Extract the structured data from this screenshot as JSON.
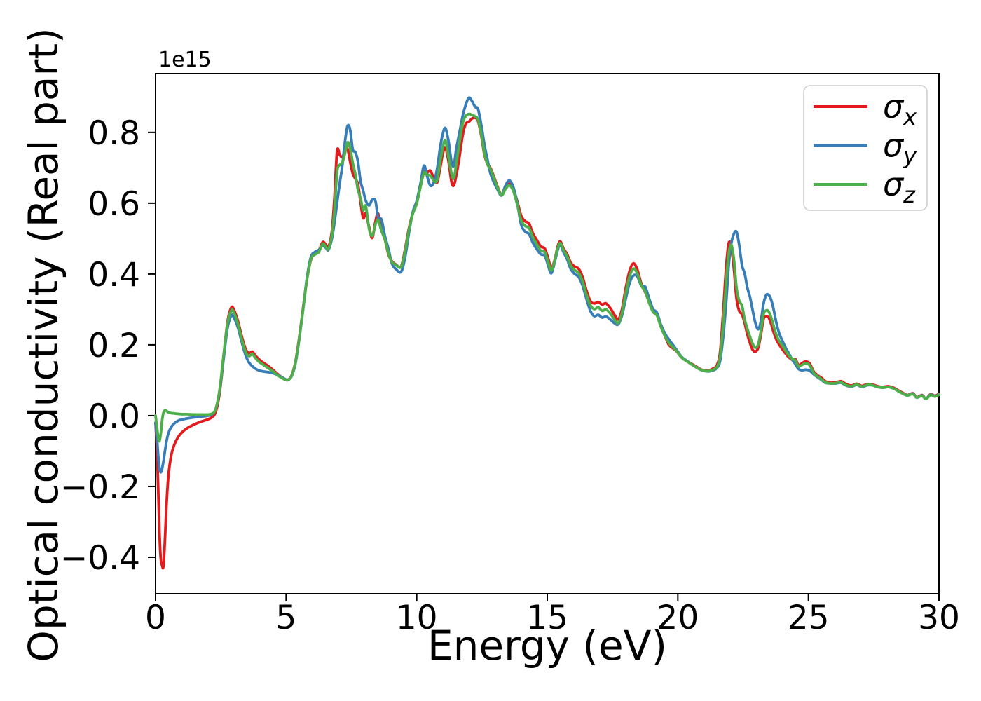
{
  "figure": {
    "background": "#ffffff"
  },
  "axes": {
    "xlabel": "Energy (eV)",
    "ylabel": "Optical conductivity (Real part)",
    "offset_text": "1e15",
    "x_tick_labels": [
      "0",
      "5",
      "10",
      "15",
      "20",
      "25",
      "30"
    ],
    "x_tick_values": [
      0,
      5,
      10,
      15,
      20,
      25,
      30
    ],
    "y_tick_labels": [
      "0.8",
      "0.6",
      "0.4",
      "0.2",
      "0.0",
      "−0.2",
      "−0.4"
    ],
    "y_tick_values": [
      0.8,
      0.6,
      0.4,
      0.2,
      0.0,
      -0.2,
      -0.4
    ],
    "spine_color": "#000000",
    "tick_color": "#000000"
  },
  "legend": {
    "entries": [
      {
        "symbol": "σ",
        "sub": "x",
        "color": "#e41a1c"
      },
      {
        "symbol": "σ",
        "sub": "y",
        "color": "#377eb8"
      },
      {
        "symbol": "σ",
        "sub": "z",
        "color": "#4daf4a"
      }
    ],
    "border_color": "#cccccc",
    "fill_color": "#ffffff"
  },
  "chart_data": {
    "type": "line",
    "title": "",
    "xlabel": "Energy (eV)",
    "ylabel": "Optical conductivity (Real part)",
    "y_scale_factor": "1e15",
    "xlim": [
      0,
      30
    ],
    "ylim": [
      -0.503,
      0.966
    ],
    "grid": false,
    "legend_position": "upper right",
    "columns": [
      "energy_eV",
      "sigma_x",
      "sigma_y",
      "sigma_z"
    ],
    "series": [
      {
        "name": "σ_x",
        "color": "#e41a1c",
        "column": 1
      },
      {
        "name": "σ_y",
        "color": "#377eb8",
        "column": 2
      },
      {
        "name": "σ_z",
        "color": "#4daf4a",
        "column": 3
      }
    ],
    "points": [
      [
        0.0,
        -0.02,
        -0.02,
        0.0
      ],
      [
        0.05,
        -0.09,
        -0.06,
        -0.03
      ],
      [
        0.1,
        -0.2,
        -0.11,
        -0.06
      ],
      [
        0.15,
        -0.33,
        -0.15,
        -0.072
      ],
      [
        0.2,
        -0.405,
        -0.16,
        -0.05
      ],
      [
        0.25,
        -0.423,
        -0.15,
        -0.015
      ],
      [
        0.3,
        -0.425,
        -0.13,
        0.008
      ],
      [
        0.36,
        -0.35,
        -0.1,
        0.015
      ],
      [
        0.42,
        -0.25,
        -0.072,
        0.013
      ],
      [
        0.5,
        -0.165,
        -0.048,
        0.009
      ],
      [
        0.6,
        -0.112,
        -0.032,
        0.007
      ],
      [
        0.72,
        -0.082,
        -0.022,
        0.006
      ],
      [
        0.85,
        -0.062,
        -0.015,
        0.005
      ],
      [
        1.0,
        -0.048,
        -0.011,
        0.004
      ],
      [
        1.2,
        -0.036,
        -0.008,
        0.004
      ],
      [
        1.45,
        -0.026,
        -0.005,
        0.003
      ],
      [
        1.7,
        -0.018,
        -0.003,
        0.003
      ],
      [
        1.95,
        -0.012,
        -0.001,
        0.003
      ],
      [
        2.15,
        -0.005,
        0.003,
        0.005
      ],
      [
        2.3,
        0.01,
        0.018,
        0.018
      ],
      [
        2.45,
        0.062,
        0.068,
        0.072
      ],
      [
        2.6,
        0.16,
        0.158,
        0.168
      ],
      [
        2.75,
        0.262,
        0.245,
        0.258
      ],
      [
        2.9,
        0.305,
        0.283,
        0.297
      ],
      [
        3.0,
        0.299,
        0.277,
        0.291
      ],
      [
        3.15,
        0.268,
        0.25,
        0.26
      ],
      [
        3.3,
        0.224,
        0.208,
        0.216
      ],
      [
        3.45,
        0.188,
        0.17,
        0.18
      ],
      [
        3.58,
        0.176,
        0.15,
        0.168
      ],
      [
        3.7,
        0.181,
        0.14,
        0.175
      ],
      [
        3.82,
        0.17,
        0.133,
        0.163
      ],
      [
        3.95,
        0.16,
        0.128,
        0.153
      ],
      [
        4.1,
        0.151,
        0.125,
        0.145
      ],
      [
        4.3,
        0.141,
        0.123,
        0.135
      ],
      [
        4.5,
        0.129,
        0.12,
        0.125
      ],
      [
        4.7,
        0.116,
        0.114,
        0.113
      ],
      [
        4.9,
        0.105,
        0.106,
        0.104
      ],
      [
        5.05,
        0.101,
        0.101,
        0.1
      ],
      [
        5.2,
        0.112,
        0.11,
        0.111
      ],
      [
        5.35,
        0.15,
        0.145,
        0.148
      ],
      [
        5.5,
        0.22,
        0.215,
        0.217
      ],
      [
        5.65,
        0.305,
        0.3,
        0.302
      ],
      [
        5.8,
        0.385,
        0.39,
        0.385
      ],
      [
        5.95,
        0.44,
        0.448,
        0.442
      ],
      [
        6.1,
        0.458,
        0.462,
        0.455
      ],
      [
        6.25,
        0.466,
        0.468,
        0.462
      ],
      [
        6.4,
        0.49,
        0.48,
        0.485
      ],
      [
        6.52,
        0.483,
        0.474,
        0.477
      ],
      [
        6.62,
        0.476,
        0.468,
        0.471
      ],
      [
        6.75,
        0.52,
        0.5,
        0.51
      ],
      [
        6.85,
        0.615,
        0.545,
        0.58
      ],
      [
        6.95,
        0.747,
        0.6,
        0.688
      ],
      [
        7.05,
        0.737,
        0.655,
        0.708
      ],
      [
        7.15,
        0.73,
        0.705,
        0.715
      ],
      [
        7.25,
        0.746,
        0.772,
        0.74
      ],
      [
        7.35,
        0.753,
        0.818,
        0.772
      ],
      [
        7.45,
        0.718,
        0.808,
        0.756
      ],
      [
        7.55,
        0.684,
        0.752,
        0.714
      ],
      [
        7.65,
        0.669,
        0.744,
        0.682
      ],
      [
        7.75,
        0.654,
        0.718,
        0.638
      ],
      [
        7.85,
        0.603,
        0.662,
        0.614
      ],
      [
        7.95,
        0.558,
        0.636,
        0.58
      ],
      [
        8.05,
        0.571,
        0.607,
        0.592
      ],
      [
        8.18,
        0.532,
        0.594,
        0.527
      ],
      [
        8.3,
        0.502,
        0.61,
        0.508
      ],
      [
        8.42,
        0.548,
        0.606,
        0.54
      ],
      [
        8.52,
        0.571,
        0.56,
        0.553
      ],
      [
        8.65,
        0.528,
        0.554,
        0.522
      ],
      [
        8.78,
        0.498,
        0.508,
        0.498
      ],
      [
        8.92,
        0.455,
        0.47,
        0.458
      ],
      [
        9.05,
        0.436,
        0.43,
        0.434
      ],
      [
        9.2,
        0.427,
        0.414,
        0.426
      ],
      [
        9.4,
        0.421,
        0.406,
        0.42
      ],
      [
        9.55,
        0.468,
        0.445,
        0.462
      ],
      [
        9.7,
        0.528,
        0.515,
        0.524
      ],
      [
        9.85,
        0.572,
        0.575,
        0.57
      ],
      [
        10.0,
        0.6,
        0.606,
        0.598
      ],
      [
        10.15,
        0.65,
        0.658,
        0.648
      ],
      [
        10.28,
        0.688,
        0.706,
        0.686
      ],
      [
        10.4,
        0.686,
        0.676,
        0.68
      ],
      [
        10.52,
        0.692,
        0.65,
        0.678
      ],
      [
        10.65,
        0.672,
        0.658,
        0.664
      ],
      [
        10.78,
        0.658,
        0.696,
        0.664
      ],
      [
        10.9,
        0.7,
        0.758,
        0.718
      ],
      [
        11.0,
        0.74,
        0.796,
        0.758
      ],
      [
        11.1,
        0.757,
        0.812,
        0.777
      ],
      [
        11.22,
        0.718,
        0.775,
        0.73
      ],
      [
        11.33,
        0.662,
        0.718,
        0.685
      ],
      [
        11.42,
        0.65,
        0.706,
        0.67
      ],
      [
        11.52,
        0.68,
        0.755,
        0.712
      ],
      [
        11.64,
        0.732,
        0.8,
        0.772
      ],
      [
        11.76,
        0.792,
        0.846,
        0.826
      ],
      [
        11.88,
        0.824,
        0.878,
        0.846
      ],
      [
        12.0,
        0.83,
        0.898,
        0.852
      ],
      [
        12.12,
        0.839,
        0.888,
        0.849
      ],
      [
        12.24,
        0.841,
        0.872,
        0.845
      ],
      [
        12.35,
        0.832,
        0.866,
        0.836
      ],
      [
        12.48,
        0.788,
        0.818,
        0.792
      ],
      [
        12.6,
        0.734,
        0.762,
        0.738
      ],
      [
        12.72,
        0.71,
        0.72,
        0.708
      ],
      [
        12.82,
        0.7,
        0.685,
        0.697
      ],
      [
        12.95,
        0.676,
        0.66,
        0.672
      ],
      [
        13.1,
        0.646,
        0.638,
        0.644
      ],
      [
        13.25,
        0.624,
        0.622,
        0.622
      ],
      [
        13.4,
        0.642,
        0.65,
        0.64
      ],
      [
        13.55,
        0.655,
        0.664,
        0.65
      ],
      [
        13.7,
        0.64,
        0.645,
        0.634
      ],
      [
        13.85,
        0.605,
        0.6,
        0.596
      ],
      [
        14.0,
        0.565,
        0.54,
        0.552
      ],
      [
        14.15,
        0.549,
        0.52,
        0.536
      ],
      [
        14.3,
        0.543,
        0.513,
        0.53
      ],
      [
        14.45,
        0.515,
        0.488,
        0.504
      ],
      [
        14.6,
        0.496,
        0.47,
        0.484
      ],
      [
        14.75,
        0.478,
        0.456,
        0.466
      ],
      [
        14.9,
        0.472,
        0.452,
        0.462
      ],
      [
        15.02,
        0.448,
        0.428,
        0.438
      ],
      [
        15.15,
        0.418,
        0.402,
        0.41
      ],
      [
        15.28,
        0.438,
        0.432,
        0.436
      ],
      [
        15.4,
        0.478,
        0.468,
        0.474
      ],
      [
        15.5,
        0.492,
        0.484,
        0.487
      ],
      [
        15.62,
        0.472,
        0.462,
        0.468
      ],
      [
        15.76,
        0.456,
        0.442,
        0.45
      ],
      [
        15.9,
        0.432,
        0.414,
        0.424
      ],
      [
        16.05,
        0.421,
        0.4,
        0.411
      ],
      [
        16.2,
        0.415,
        0.392,
        0.403
      ],
      [
        16.35,
        0.392,
        0.368,
        0.38
      ],
      [
        16.5,
        0.354,
        0.33,
        0.342
      ],
      [
        16.65,
        0.324,
        0.296,
        0.312
      ],
      [
        16.8,
        0.317,
        0.281,
        0.301
      ],
      [
        16.95,
        0.321,
        0.285,
        0.306
      ],
      [
        17.1,
        0.314,
        0.277,
        0.296
      ],
      [
        17.25,
        0.317,
        0.28,
        0.3
      ],
      [
        17.42,
        0.303,
        0.271,
        0.288
      ],
      [
        17.58,
        0.284,
        0.261,
        0.271
      ],
      [
        17.72,
        0.272,
        0.258,
        0.262
      ],
      [
        17.86,
        0.3,
        0.283,
        0.29
      ],
      [
        18.0,
        0.358,
        0.328,
        0.344
      ],
      [
        18.15,
        0.408,
        0.374,
        0.393
      ],
      [
        18.3,
        0.43,
        0.396,
        0.415
      ],
      [
        18.45,
        0.412,
        0.393,
        0.401
      ],
      [
        18.6,
        0.373,
        0.367,
        0.368
      ],
      [
        18.75,
        0.349,
        0.364,
        0.351
      ],
      [
        18.9,
        0.321,
        0.331,
        0.319
      ],
      [
        19.05,
        0.296,
        0.301,
        0.293
      ],
      [
        19.2,
        0.286,
        0.291,
        0.283
      ],
      [
        19.35,
        0.253,
        0.257,
        0.251
      ],
      [
        19.5,
        0.226,
        0.233,
        0.226
      ],
      [
        19.65,
        0.201,
        0.216,
        0.206
      ],
      [
        19.8,
        0.191,
        0.201,
        0.194
      ],
      [
        19.95,
        0.182,
        0.186,
        0.183
      ],
      [
        20.15,
        0.164,
        0.166,
        0.164
      ],
      [
        20.4,
        0.152,
        0.152,
        0.151
      ],
      [
        20.65,
        0.141,
        0.139,
        0.139
      ],
      [
        20.9,
        0.13,
        0.129,
        0.129
      ],
      [
        21.15,
        0.127,
        0.125,
        0.126
      ],
      [
        21.35,
        0.133,
        0.128,
        0.13
      ],
      [
        21.5,
        0.143,
        0.135,
        0.138
      ],
      [
        21.62,
        0.18,
        0.155,
        0.168
      ],
      [
        21.74,
        0.295,
        0.225,
        0.262
      ],
      [
        21.85,
        0.42,
        0.32,
        0.38
      ],
      [
        21.95,
        0.487,
        0.425,
        0.458
      ],
      [
        22.05,
        0.477,
        0.487,
        0.482
      ],
      [
        22.15,
        0.412,
        0.514,
        0.44
      ],
      [
        22.25,
        0.33,
        0.519,
        0.36
      ],
      [
        22.35,
        0.296,
        0.482,
        0.325
      ],
      [
        22.46,
        0.286,
        0.424,
        0.31
      ],
      [
        22.56,
        0.262,
        0.402,
        0.272
      ],
      [
        22.66,
        0.23,
        0.362,
        0.246
      ],
      [
        22.76,
        0.206,
        0.336,
        0.224
      ],
      [
        22.86,
        0.187,
        0.3,
        0.204
      ],
      [
        22.97,
        0.181,
        0.262,
        0.192
      ],
      [
        23.08,
        0.192,
        0.244,
        0.202
      ],
      [
        23.18,
        0.228,
        0.266,
        0.238
      ],
      [
        23.28,
        0.272,
        0.315,
        0.286
      ],
      [
        23.38,
        0.281,
        0.34,
        0.297
      ],
      [
        23.48,
        0.277,
        0.341,
        0.294
      ],
      [
        23.58,
        0.258,
        0.326,
        0.276
      ],
      [
        23.68,
        0.233,
        0.296,
        0.25
      ],
      [
        23.78,
        0.214,
        0.26,
        0.227
      ],
      [
        23.88,
        0.201,
        0.233,
        0.211
      ],
      [
        24.0,
        0.188,
        0.212,
        0.198
      ],
      [
        24.12,
        0.176,
        0.193,
        0.184
      ],
      [
        24.25,
        0.165,
        0.176,
        0.17
      ],
      [
        24.38,
        0.158,
        0.158,
        0.16
      ],
      [
        24.5,
        0.16,
        0.146,
        0.156
      ],
      [
        24.62,
        0.143,
        0.132,
        0.139
      ],
      [
        24.75,
        0.148,
        0.128,
        0.143
      ],
      [
        24.9,
        0.153,
        0.13,
        0.148
      ],
      [
        25.05,
        0.147,
        0.127,
        0.142
      ],
      [
        25.2,
        0.125,
        0.117,
        0.121
      ],
      [
        25.35,
        0.114,
        0.109,
        0.111
      ],
      [
        25.5,
        0.107,
        0.101,
        0.103
      ],
      [
        25.65,
        0.097,
        0.093,
        0.094
      ],
      [
        25.85,
        0.093,
        0.091,
        0.091
      ],
      [
        26.05,
        0.094,
        0.091,
        0.092
      ],
      [
        26.25,
        0.097,
        0.093,
        0.094
      ],
      [
        26.45,
        0.089,
        0.085,
        0.086
      ],
      [
        26.65,
        0.085,
        0.082,
        0.083
      ],
      [
        26.85,
        0.09,
        0.087,
        0.088
      ],
      [
        27.05,
        0.084,
        0.081,
        0.082
      ],
      [
        27.25,
        0.089,
        0.086,
        0.087
      ],
      [
        27.45,
        0.088,
        0.086,
        0.086
      ],
      [
        27.65,
        0.083,
        0.081,
        0.081
      ],
      [
        27.85,
        0.081,
        0.079,
        0.079
      ],
      [
        28.05,
        0.083,
        0.081,
        0.081
      ],
      [
        28.25,
        0.079,
        0.077,
        0.077
      ],
      [
        28.45,
        0.071,
        0.069,
        0.069
      ],
      [
        28.62,
        0.064,
        0.062,
        0.062
      ],
      [
        28.8,
        0.058,
        0.057,
        0.057
      ],
      [
        29.0,
        0.063,
        0.062,
        0.061
      ],
      [
        29.15,
        0.052,
        0.051,
        0.051
      ],
      [
        29.35,
        0.058,
        0.057,
        0.056
      ],
      [
        29.5,
        0.048,
        0.048,
        0.047
      ],
      [
        29.68,
        0.06,
        0.059,
        0.058
      ],
      [
        29.85,
        0.056,
        0.055,
        0.054
      ],
      [
        30.0,
        0.062,
        0.06,
        0.059
      ]
    ]
  }
}
